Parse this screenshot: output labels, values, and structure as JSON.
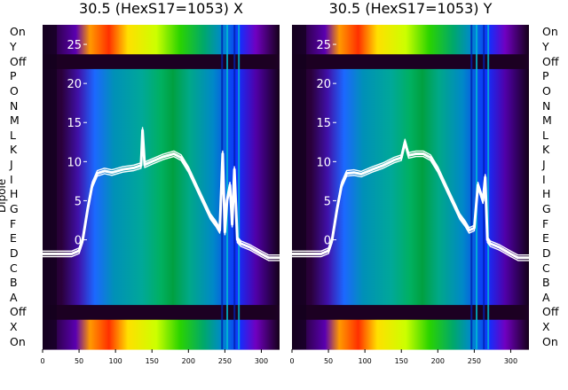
{
  "chart_data": [
    {
      "type": "heatmap",
      "title": "30.5 (HexS17=1053) X",
      "ylabel": "Dipole",
      "x_ticks": [
        0,
        50,
        100,
        150,
        200,
        250,
        300
      ],
      "xlim": [
        0,
        325
      ],
      "y_ticks": [
        0,
        5,
        10,
        15,
        20,
        25
      ],
      "ylim": [
        -14,
        27.5
      ],
      "row_labels": [
        "On",
        "Y",
        "Off",
        "P",
        "O",
        "N",
        "M",
        "L",
        "K",
        "J",
        "I",
        "H",
        "G",
        "F",
        "E",
        "D",
        "C",
        "B",
        "A",
        "Off",
        "X",
        "On"
      ],
      "colormap": "nipy_spectral",
      "overlay_series": {
        "color": "#ffffff",
        "x": [
          0,
          40,
          50,
          55,
          62,
          68,
          75,
          85,
          95,
          110,
          125,
          135,
          137,
          140,
          150,
          165,
          180,
          190,
          200,
          215,
          230,
          238,
          243,
          247,
          250,
          253,
          257,
          260,
          263,
          267,
          272,
          285,
          300,
          310,
          325
        ],
        "y": [
          -1.8,
          -1.8,
          -1.4,
          0,
          4,
          7,
          8.5,
          8.8,
          8.6,
          9,
          9.2,
          9.5,
          14,
          9.6,
          10,
          10.6,
          11,
          10.5,
          9,
          6,
          3,
          2,
          1.2,
          11,
          1,
          5,
          7,
          2,
          9,
          0,
          -0.5,
          -1,
          -1.8,
          -2.3,
          -2.3
        ]
      }
    },
    {
      "type": "heatmap",
      "title": "30.5 (HexS17=1053) Y",
      "x_ticks": [
        0,
        50,
        100,
        150,
        200,
        250,
        300
      ],
      "xlim": [
        0,
        325
      ],
      "y_ticks": [
        0,
        5,
        10,
        15,
        20,
        25
      ],
      "ylim": [
        -14,
        27.5
      ],
      "row_labels": [
        "On",
        "Y",
        "Off",
        "P",
        "O",
        "N",
        "M",
        "L",
        "K",
        "J",
        "I",
        "H",
        "G",
        "F",
        "E",
        "D",
        "C",
        "B",
        "A",
        "Off",
        "X",
        "On"
      ],
      "colormap": "nipy_spectral",
      "overlay_series": {
        "color": "#ffffff",
        "x": [
          0,
          40,
          50,
          55,
          62,
          68,
          75,
          85,
          95,
          110,
          125,
          140,
          150,
          155,
          160,
          170,
          180,
          190,
          200,
          215,
          230,
          238,
          243,
          250,
          255,
          262,
          265,
          268,
          272,
          285,
          300,
          310,
          325
        ],
        "y": [
          -1.8,
          -1.8,
          -1.4,
          0,
          4,
          7,
          8.5,
          8.6,
          8.4,
          9,
          9.5,
          10.2,
          10.5,
          12.5,
          10.8,
          11,
          11,
          10.5,
          9,
          6,
          3,
          2,
          1.2,
          1.5,
          7,
          5,
          8,
          0,
          -0.5,
          -1,
          -1.8,
          -2.3,
          -2.3
        ]
      }
    }
  ]
}
